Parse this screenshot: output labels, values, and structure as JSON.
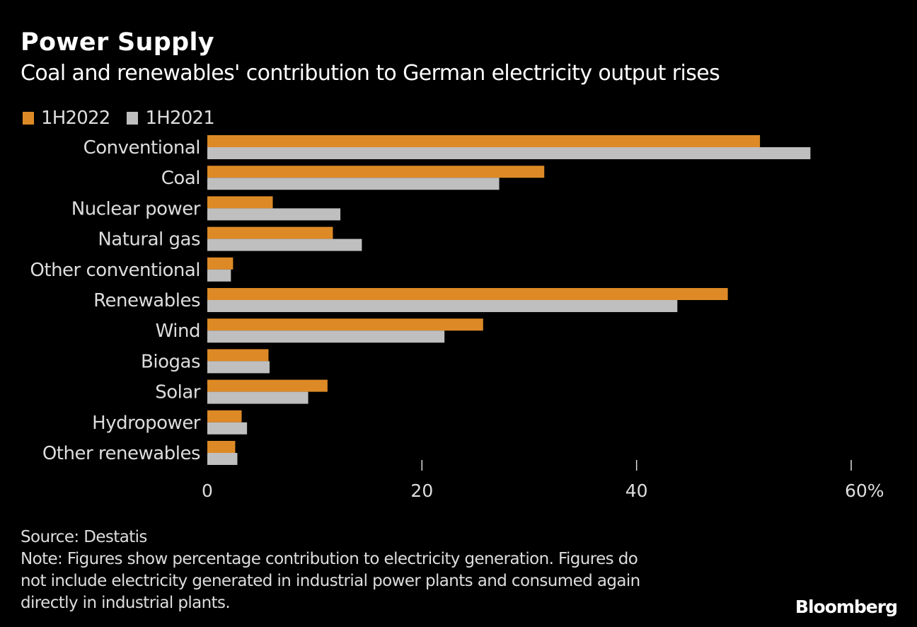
{
  "chart_data": {
    "type": "bar",
    "orientation": "horizontal",
    "title": "Power Supply",
    "subtitle": "Coal and renewables' contribution to German electricity output rises",
    "categories": [
      "Conventional",
      "Coal",
      "Nuclear power",
      "Natural gas",
      "Other conventional",
      "Renewables",
      "Wind",
      "Biogas",
      "Solar",
      "Hydropower",
      "Other renewables"
    ],
    "series": [
      {
        "name": "1H2022",
        "color": "#dd8a26",
        "values": [
          51.5,
          31.4,
          6.1,
          11.7,
          2.4,
          48.5,
          25.7,
          5.7,
          11.2,
          3.2,
          2.6
        ]
      },
      {
        "name": "1H2021",
        "color": "#bfbfbf",
        "values": [
          56.2,
          27.2,
          12.4,
          14.4,
          2.2,
          43.8,
          22.1,
          5.8,
          9.4,
          3.7,
          2.8
        ]
      }
    ],
    "xlim": [
      0,
      60
    ],
    "xticks": [
      0,
      20,
      40,
      60
    ],
    "xtick_labels": [
      "0",
      "20",
      "40",
      "60%"
    ],
    "xlabel": "",
    "ylabel": "",
    "grid": false,
    "legend_position": "top-left"
  },
  "footer": {
    "source": "Source: Destatis",
    "note_lines": [
      "Note: Figures show percentage contribution to electricity generation. Figures do",
      "not include electricity generated in industrial power plants and consumed again",
      "directly in industrial plants."
    ]
  },
  "brand": "Bloomberg"
}
